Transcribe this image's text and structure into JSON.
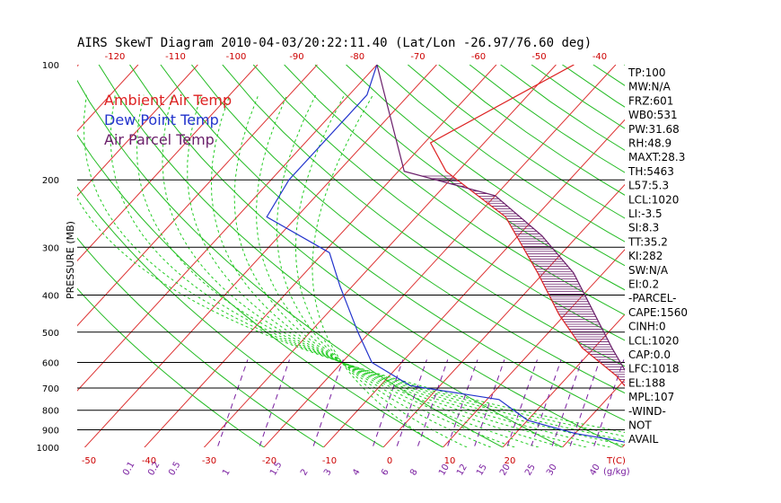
{
  "chart_data": {
    "type": "line",
    "title": "AIRS SkewT Diagram 2010-04-03/20:22:11.40 (Lat/Lon -26.97/76.60 deg)",
    "ylabel": "PRESSURE (MB)",
    "xlabel_temp": "T(C)",
    "xlabel_mix": "(g/kg)",
    "pressure_ticks": [
      {
        "p": 100,
        "label": "100"
      },
      {
        "p": 200,
        "label": "200"
      },
      {
        "p": 300,
        "label": "300"
      },
      {
        "p": 400,
        "label": "400"
      },
      {
        "p": 500,
        "label": "500"
      },
      {
        "p": 600,
        "label": "600"
      },
      {
        "p": 700,
        "label": "700"
      },
      {
        "p": 800,
        "label": "800"
      },
      {
        "p": 900,
        "label": "900"
      },
      {
        "p": 1000,
        "label": "1000"
      }
    ],
    "top_temp_ticks": [
      "-120",
      "-110",
      "-100",
      "-90",
      "-80",
      "-70",
      "-60",
      "-50",
      "-40"
    ],
    "bottom_temp_ticks": [
      "-50",
      "-40",
      "-30",
      "-20",
      "-10",
      "0",
      "10",
      "20"
    ],
    "mixing_ratio_labels": [
      "0.1",
      "0.2",
      "0.5",
      "1",
      "1.5",
      "2",
      "3",
      "4",
      "6",
      "8",
      "10",
      "12",
      "15",
      "20",
      "25",
      "30",
      "40"
    ],
    "legend": [
      {
        "name": "Ambient Air Temp",
        "color": "#dd2222"
      },
      {
        "name": "Dew Point Temp",
        "color": "#2233cc"
      },
      {
        "name": "Air Parcel Temp",
        "color": "#6a1f6a"
      }
    ],
    "series": [
      {
        "name": "Ambient Air Temp",
        "color": "#dd2222",
        "x": [
          25,
          24,
          22.5,
          22,
          20,
          15,
          8,
          -2,
          -11,
          -21,
          -35,
          -52,
          -59,
          -47
        ],
        "y": [
          1000,
          960,
          950,
          900,
          850,
          750,
          650,
          550,
          450,
          350,
          250,
          190,
          160,
          100
        ]
      },
      {
        "name": "Dew Point Temp",
        "color": "#2233cc",
        "x": [
          25,
          18,
          10,
          0,
          -8,
          -25,
          -35,
          -42,
          -52,
          -59,
          -75,
          -77,
          -77,
          -80
        ],
        "y": [
          1000,
          960,
          920,
          850,
          750,
          690,
          600,
          500,
          380,
          310,
          250,
          200,
          120,
          100
        ]
      },
      {
        "name": "Air Parcel Temp",
        "color": "#6a1f6a",
        "x": [
          26,
          24,
          22,
          19,
          15,
          10,
          3,
          -5,
          -15,
          -26,
          -40,
          -59,
          -80
        ],
        "y": [
          1000,
          950,
          900,
          850,
          750,
          650,
          550,
          450,
          350,
          280,
          220,
          190,
          100
        ]
      }
    ],
    "grid": {
      "isobars": [
        200,
        300,
        400,
        500,
        600,
        700,
        800,
        900
      ],
      "isotherm_color": "#dd3333",
      "dry_adiabat_color": "#22bb22",
      "moist_adiabat_color": "#22cc22",
      "mixing_ratio_color": "#7a1fa0",
      "isobar_color": "#000000"
    },
    "indices": [
      "TP:100",
      "MW:N/A",
      "FRZ:601",
      "WB0:531",
      "PW:31.68",
      "RH:48.9",
      "MAXT:28.3",
      "TH:5463",
      "L57:5.3",
      "LCL:1020",
      "LI:-3.5",
      "SI:8.3",
      "TT:35.2",
      "KI:282",
      "SW:N/A",
      "EI:0.2",
      "-PARCEL-",
      "CAPE:1560",
      "CINH:0",
      "LCL:1020",
      "CAP:0.0",
      "LFC:1018",
      "EL:188",
      "MPL:107",
      "-WIND-",
      "NOT",
      "AVAIL"
    ]
  }
}
